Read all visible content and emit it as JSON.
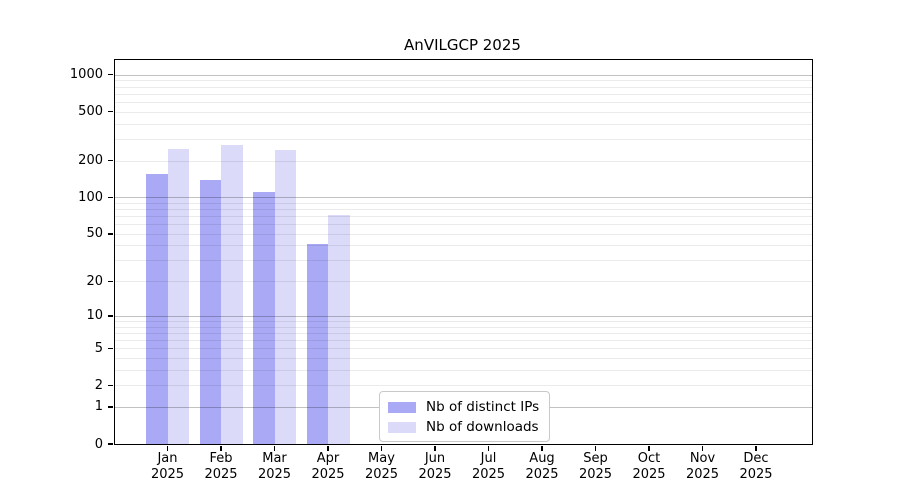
{
  "title": "AnVILGCP 2025",
  "chart_data": {
    "type": "bar",
    "title": "AnVILGCP 2025",
    "categories": [
      "Jan",
      "Feb",
      "Mar",
      "Apr",
      "May",
      "Jun",
      "Jul",
      "Aug",
      "Sep",
      "Oct",
      "Nov",
      "Dec"
    ],
    "x_year": "2025",
    "series": [
      {
        "name": "Nb of distinct IPs",
        "color": "#a9a9f5",
        "values": [
          155,
          138,
          111,
          41,
          null,
          null,
          null,
          null,
          null,
          null,
          null,
          null
        ]
      },
      {
        "name": "Nb of downloads",
        "color": "#dbdbf9",
        "values": [
          250,
          266,
          245,
          72,
          null,
          null,
          null,
          null,
          null,
          null,
          null,
          null
        ]
      }
    ],
    "yticks": [
      0,
      1,
      2,
      5,
      10,
      20,
      50,
      100,
      200,
      500,
      1000
    ],
    "ylabel": "",
    "xlabel": "",
    "scale": "log10(1+x)",
    "ylim": [
      0,
      1317
    ],
    "grid": true,
    "grid_over_bars": true,
    "legend": {
      "position": "bottom-center",
      "entries": [
        "Nb of distinct IPs",
        "Nb of downloads"
      ]
    }
  },
  "colors": {
    "bar_dark": "#a9a9f5",
    "bar_light": "#dbdbf9",
    "axis": "#000000",
    "minor_grid": "rgba(0,0,0,0.08)",
    "major_grid": "rgba(0,0,0,0.24)",
    "legend_border": "#c9c9c9"
  }
}
